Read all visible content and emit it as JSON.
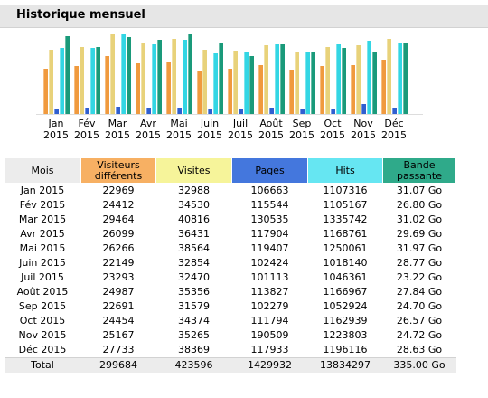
{
  "section_title": "Historique mensuel",
  "colors": {
    "visitors": "#f09a3e",
    "visits": "#e8d27a",
    "pages": "#2f5fd0",
    "hits": "#33d6e4",
    "bandwidth": "#1a9a7a"
  },
  "table": {
    "headers": {
      "month": "Mois",
      "visitors": "Visiteurs différents",
      "visits": "Visites",
      "pages": "Pages",
      "hits": "Hits",
      "bandwidth": "Bande passante"
    },
    "rows": [
      {
        "month": "Jan 2015",
        "visitors": "22969",
        "visits": "32988",
        "pages": "106663",
        "hits": "1107316",
        "bandwidth": "31.07 Go"
      },
      {
        "month": "Fév 2015",
        "visitors": "24412",
        "visits": "34530",
        "pages": "115544",
        "hits": "1105167",
        "bandwidth": "26.80 Go"
      },
      {
        "month": "Mar 2015",
        "visitors": "29464",
        "visits": "40816",
        "pages": "130535",
        "hits": "1335742",
        "bandwidth": "31.02 Go"
      },
      {
        "month": "Avr 2015",
        "visitors": "26099",
        "visits": "36431",
        "pages": "117904",
        "hits": "1168761",
        "bandwidth": "29.69 Go"
      },
      {
        "month": "Mai 2015",
        "visitors": "26266",
        "visits": "38564",
        "pages": "119407",
        "hits": "1250061",
        "bandwidth": "31.97 Go"
      },
      {
        "month": "Juin 2015",
        "visitors": "22149",
        "visits": "32854",
        "pages": "102424",
        "hits": "1018140",
        "bandwidth": "28.77 Go"
      },
      {
        "month": "Juil 2015",
        "visitors": "23293",
        "visits": "32470",
        "pages": "101113",
        "hits": "1046361",
        "bandwidth": "23.22 Go"
      },
      {
        "month": "Août 2015",
        "visitors": "24987",
        "visits": "35356",
        "pages": "113827",
        "hits": "1166967",
        "bandwidth": "27.84 Go"
      },
      {
        "month": "Sep 2015",
        "visitors": "22691",
        "visits": "31579",
        "pages": "102279",
        "hits": "1052924",
        "bandwidth": "24.70 Go"
      },
      {
        "month": "Oct 2015",
        "visitors": "24454",
        "visits": "34374",
        "pages": "111794",
        "hits": "1162939",
        "bandwidth": "26.57 Go"
      },
      {
        "month": "Nov 2015",
        "visitors": "25167",
        "visits": "35265",
        "pages": "190509",
        "hits": "1223803",
        "bandwidth": "24.72 Go"
      },
      {
        "month": "Déc 2015",
        "visitors": "27733",
        "visits": "38369",
        "pages": "117933",
        "hits": "1196116",
        "bandwidth": "28.63 Go"
      }
    ],
    "total": {
      "month": "Total",
      "visitors": "299684",
      "visits": "423596",
      "pages": "1429932",
      "hits": "13834297",
      "bandwidth": "335.00 Go"
    }
  },
  "chart_data": {
    "type": "bar",
    "categories": [
      {
        "month": "Jan",
        "year": "2015"
      },
      {
        "month": "Fév",
        "year": "2015"
      },
      {
        "month": "Mar",
        "year": "2015"
      },
      {
        "month": "Avr",
        "year": "2015"
      },
      {
        "month": "Mai",
        "year": "2015"
      },
      {
        "month": "Juin",
        "year": "2015"
      },
      {
        "month": "Juil",
        "year": "2015"
      },
      {
        "month": "Août",
        "year": "2015"
      },
      {
        "month": "Sep",
        "year": "2015"
      },
      {
        "month": "Oct",
        "year": "2015"
      },
      {
        "month": "Nov",
        "year": "2015"
      },
      {
        "month": "Déc",
        "year": "2015"
      }
    ],
    "series": [
      {
        "key": "visitors",
        "values": [
          22969,
          24412,
          29464,
          26099,
          26266,
          22149,
          23293,
          24987,
          22691,
          24454,
          25167,
          27733
        ]
      },
      {
        "key": "visits",
        "values": [
          32988,
          34530,
          40816,
          36431,
          38564,
          32854,
          32470,
          35356,
          31579,
          34374,
          35265,
          38369
        ]
      },
      {
        "key": "pages",
        "values": [
          106663,
          115544,
          130535,
          117904,
          119407,
          102424,
          101113,
          113827,
          102279,
          111794,
          190509,
          117933
        ]
      },
      {
        "key": "hits",
        "values": [
          1107316,
          1105167,
          1335742,
          1168761,
          1250061,
          1018140,
          1046361,
          1166967,
          1052924,
          1162939,
          1223803,
          1196116
        ]
      },
      {
        "key": "bandwidth",
        "values": [
          31.07,
          26.8,
          31.02,
          29.69,
          31.97,
          28.77,
          23.22,
          27.84,
          24.7,
          26.57,
          24.72,
          28.63
        ]
      }
    ],
    "grid": false,
    "legend": "none"
  }
}
